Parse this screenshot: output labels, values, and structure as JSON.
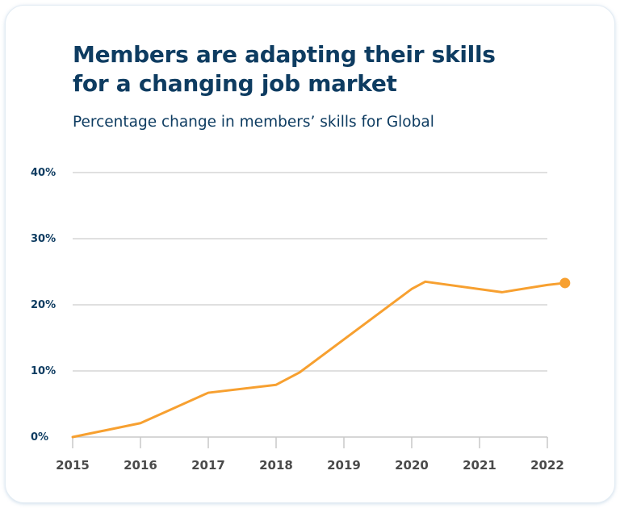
{
  "title_line1": "Members are adapting their skills",
  "title_line2": "for a changing job market",
  "subtitle": "Percentage change in members’ skills for Global",
  "chart_data": {
    "type": "line",
    "title": "Members are adapting their skills for a changing job market",
    "subtitle": "Percentage change in members’ skills for Global",
    "xlabel": "",
    "ylabel": "",
    "x_ticks": [
      "2015",
      "2016",
      "2017",
      "2018",
      "2019",
      "2020",
      "2021",
      "2022"
    ],
    "y_ticks": [
      "0%",
      "10%",
      "20%",
      "30%",
      "40%"
    ],
    "ylim": [
      0,
      40
    ],
    "xlim": [
      2015,
      2022
    ],
    "grid": true,
    "color": "#f7a030",
    "series": [
      {
        "x": [
          2015,
          2016,
          2017,
          2018,
          2018.35,
          2020,
          2020.2,
          2021.33,
          2022,
          2022.26
        ],
        "y": [
          0,
          2.1,
          6.7,
          7.9,
          9.8,
          22.4,
          23.5,
          21.9,
          23.0,
          23.3
        ]
      }
    ],
    "end_marker": true
  }
}
